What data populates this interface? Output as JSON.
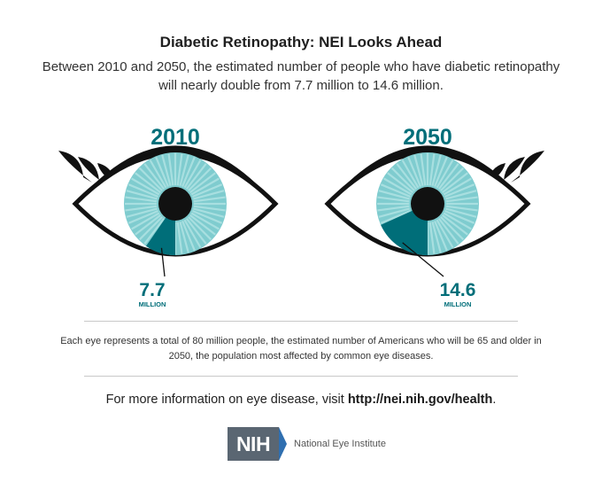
{
  "header": {
    "title": "Diabetic Retinopathy: NEI Looks Ahead",
    "subtitle": "Between 2010 and 2050, the estimated number of people who have diabetic retinopathy will nearly double from 7.7 million to 14.6 million."
  },
  "chart_data": {
    "type": "pie",
    "title": "Diabetic Retinopathy: NEI Looks Ahead",
    "total": 80,
    "unit": "MILLION",
    "categories": [
      "2010",
      "2050"
    ],
    "values": [
      7.7,
      14.6
    ],
    "value_labels": [
      "7.7",
      "14.6"
    ],
    "colors": {
      "affected": "#006e79",
      "iris": "#7fcccf",
      "ray": "#a8dfe0",
      "pupil": "#111111",
      "sclera": "#ffffff",
      "outline": "#111111"
    }
  },
  "footnote": "Each eye represents a total of 80 million people, the estimated number of Americans who will be 65 and older in 2050, the population most affected by common eye diseases.",
  "more_info": {
    "prefix": "For more information on eye disease, visit ",
    "url": "http://nei.nih.gov/health",
    "suffix": "."
  },
  "logo": {
    "mark": "NIH",
    "name": "National Eye Institute"
  }
}
